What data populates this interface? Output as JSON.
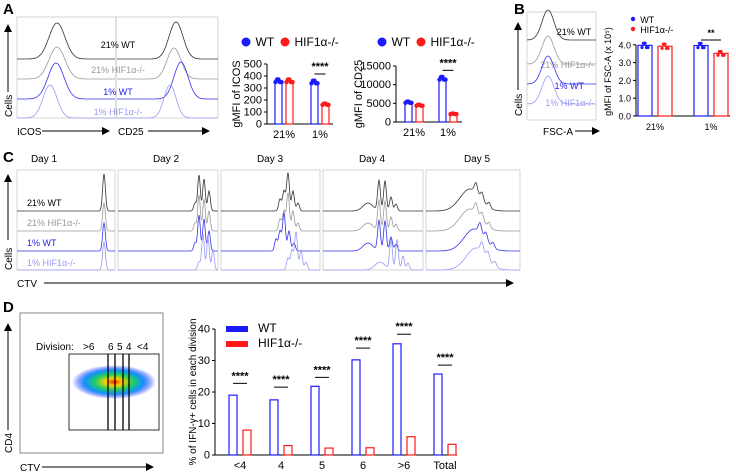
{
  "panels": {
    "a": "A",
    "b": "B",
    "c": "C",
    "d": "D"
  },
  "colors": {
    "wt": "#1a1aff",
    "hif": "#ff1a1a",
    "wt_dark": "#333333",
    "hif_grey": "#9a9a9a",
    "wt_blue": "#3333ee",
    "hif_lilac": "#9a9af5"
  },
  "hist_labels": [
    "21% WT",
    "21% HIF1α-/-",
    "1% WT",
    "1% HIF1α-/-"
  ],
  "panel_a": {
    "y_axis": "Cells",
    "x_axis_1": "ICOS",
    "x_axis_2": "CD25"
  },
  "panel_b": {
    "y_axis": "Cells",
    "x_axis": "FSC-A"
  },
  "panel_c": {
    "days": [
      "Day 1",
      "Day 2",
      "Day 3",
      "Day 4",
      "Day 5"
    ],
    "y_axis": "Cells",
    "x_axis": "CTV"
  },
  "panel_d": {
    "division_label": "Division:",
    "divisions": [
      ">6",
      "6",
      "5",
      "4",
      "<4"
    ],
    "y_axis": "CD4",
    "x_axis": "CTV"
  },
  "chart_data": [
    {
      "type": "bar",
      "id": "icos",
      "ylabel": "gMFI of ICOS",
      "categories": [
        "21%",
        "1%"
      ],
      "ylim": [
        0,
        500
      ],
      "yticks": [
        "0",
        "100",
        "200",
        "300",
        "400",
        "500"
      ],
      "tick_values": [
        0,
        100,
        200,
        300,
        400,
        500
      ],
      "series": [
        {
          "name": "WT",
          "values": [
            360,
            350
          ]
        },
        {
          "name": "HIF1α-/-",
          "values": [
            360,
            165
          ]
        }
      ],
      "significance": [
        {
          "category": "1%",
          "label": "****"
        }
      ],
      "legend": [
        "WT",
        "HIF1α-/-"
      ]
    },
    {
      "type": "bar",
      "id": "cd25",
      "ylabel": "gMFI of CD25",
      "categories": [
        "21%",
        "1%"
      ],
      "ylim": [
        0,
        15000
      ],
      "yticks": [
        "0",
        "5000",
        "10000",
        "15000"
      ],
      "tick_values": [
        0,
        5000,
        10000,
        15000
      ],
      "series": [
        {
          "name": "WT",
          "values": [
            5300,
            11700
          ]
        },
        {
          "name": "HIF1α-/-",
          "values": [
            4500,
            2200
          ]
        }
      ],
      "significance": [
        {
          "category": "1%",
          "label": "****"
        }
      ],
      "legend": [
        "WT",
        "HIF1α-/-"
      ]
    },
    {
      "type": "bar",
      "id": "fsc",
      "ylabel": "gMFI of FSC-A (x 10⁵)",
      "categories": [
        "21%",
        "1%"
      ],
      "ylim": [
        0,
        5
      ],
      "yticks": [
        "0.0",
        "1.0",
        "2.0",
        "3.0",
        "4.0"
      ],
      "tick_values": [
        0,
        1,
        2,
        3,
        4
      ],
      "series": [
        {
          "name": "WT",
          "values": [
            3.97,
            3.96
          ]
        },
        {
          "name": "HIF1α-/-",
          "values": [
            3.92,
            3.52
          ]
        }
      ],
      "significance": [
        {
          "category": "1%",
          "label": "**"
        }
      ],
      "legend": [
        "WT",
        "HIF1α-/-"
      ]
    },
    {
      "type": "bar",
      "id": "ifng",
      "ylabel": "% of IFN-γ+ cells in each division",
      "categories": [
        "<4",
        "4",
        "5",
        "6",
        ">6",
        "Total"
      ],
      "ylim": [
        0,
        40
      ],
      "yticks": [
        "0",
        "10",
        "20",
        "30",
        "40"
      ],
      "tick_values": [
        0,
        10,
        20,
        30,
        40
      ],
      "series": [
        {
          "name": "WT",
          "values": [
            19.0,
            17.5,
            21.8,
            30.2,
            35.3,
            25.7
          ],
          "errors": [
            1.2,
            1.5,
            0.3,
            1.2,
            0.5,
            0.3
          ]
        },
        {
          "name": "HIF1α-/-",
          "values": [
            7.9,
            3.0,
            2.2,
            2.3,
            5.8,
            3.4
          ],
          "errors": [
            0.6,
            0.3,
            0.3,
            0.2,
            0.2,
            0.1
          ]
        }
      ],
      "significance": [
        "****",
        "****",
        "****",
        "****",
        "****",
        "****"
      ],
      "legend": [
        "WT",
        "HIF1α-/-"
      ]
    }
  ]
}
